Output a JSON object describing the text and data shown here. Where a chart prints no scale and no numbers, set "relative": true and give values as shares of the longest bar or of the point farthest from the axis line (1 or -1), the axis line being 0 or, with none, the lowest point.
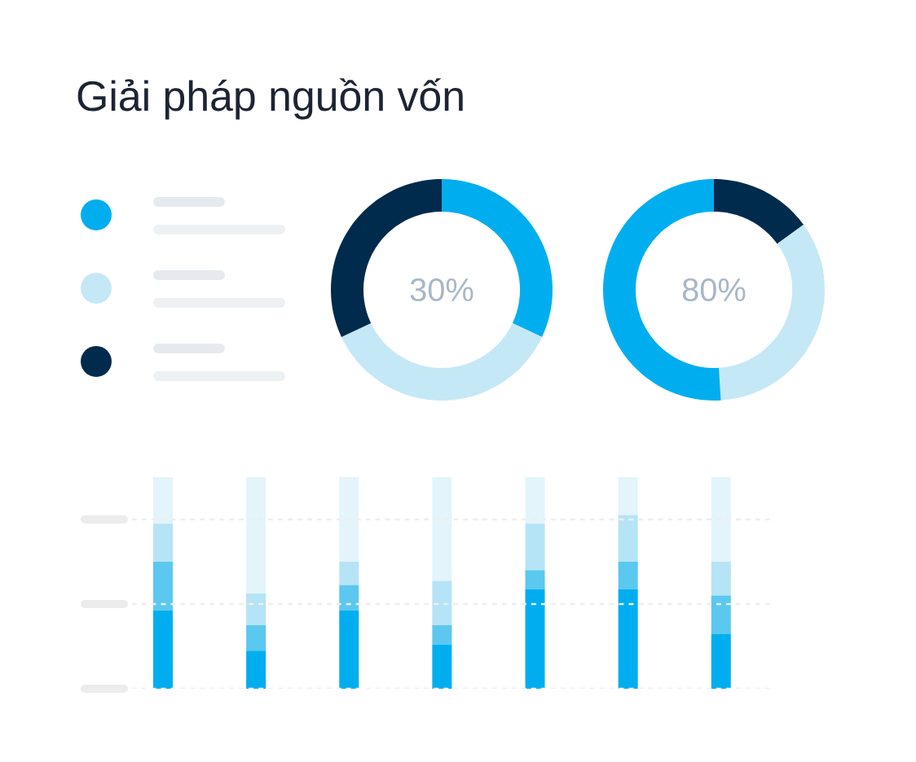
{
  "chart_data": [
    {
      "type": "donut",
      "title": "Giải pháp nguồn vốn",
      "categories": [
        null,
        null,
        null
      ],
      "values": [
        32,
        36,
        32
      ],
      "colors": [
        "#00aeef",
        "#c5e8f7",
        "#002b4d"
      ],
      "annotations": [
        "30%"
      ]
    },
    {
      "type": "donut",
      "categories": [
        null,
        null,
        null
      ],
      "values": [
        15,
        34,
        51
      ],
      "colors": [
        "#002b4d",
        "#c5e8f7",
        "#00aeef"
      ],
      "annotations": [
        "80%"
      ]
    },
    {
      "type": "bar",
      "stacked": true,
      "relative": true,
      "categories": [
        null,
        null,
        null,
        null,
        null,
        null,
        null
      ],
      "ref_lines": [
        {
          "axis": "y",
          "value": 0,
          "color": "#eeeeee",
          "line_style": "dashed"
        },
        {
          "axis": "y",
          "value": 0.4,
          "color": "#eeeeee",
          "line_style": "dashed"
        },
        {
          "axis": "y",
          "value": 0.8,
          "color": "#eeeeee",
          "line_style": "dashed"
        }
      ],
      "series": [
        {
          "color": "#00aeef",
          "values": [
            0.37,
            0.18,
            0.37,
            0.21,
            0.47,
            0.47,
            0.26
          ]
        },
        {
          "color": "#5bc8f0",
          "values": [
            0.23,
            0.12,
            0.12,
            0.09,
            0.09,
            0.13,
            0.18
          ]
        },
        {
          "color": "#b5e4f6",
          "values": [
            0.18,
            0.15,
            0.11,
            0.21,
            0.22,
            0.22,
            0.16
          ]
        },
        {
          "color": "#e3f4fb",
          "values": [
            0.22,
            0.55,
            0.4,
            0.49,
            0.22,
            0.18,
            0.4
          ]
        }
      ]
    }
  ]
}
